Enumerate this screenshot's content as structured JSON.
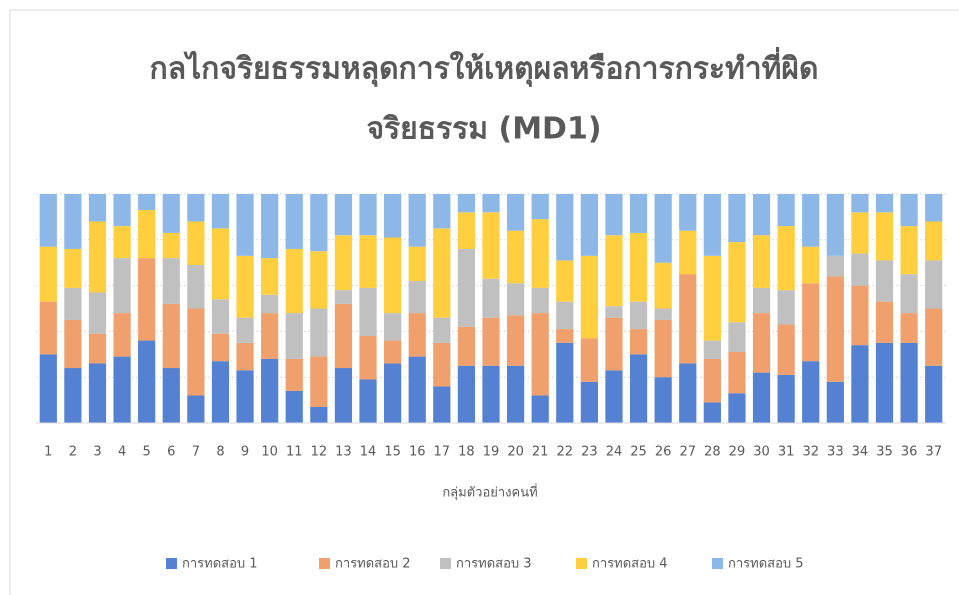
{
  "chart_data": {
    "type": "stacked_bar_100",
    "title_lines": [
      "กลไกจริยธรรมหลุดการให้เหตุผลหรือการกระทำที่ผิด",
      "จริยธรรม (MD1)"
    ],
    "x_label": "กลุ่มตัวอย่างคนที่",
    "categories": [
      "1",
      "2",
      "3",
      "4",
      "5",
      "6",
      "7",
      "8",
      "9",
      "10",
      "11",
      "12",
      "13",
      "14",
      "15",
      "16",
      "17",
      "18",
      "19",
      "20",
      "21",
      "22",
      "23",
      "24",
      "25",
      "26",
      "27",
      "28",
      "29",
      "30",
      "31",
      "32",
      "33",
      "34",
      "35",
      "36",
      "37"
    ],
    "ylim": [
      0,
      100
    ],
    "yticks": [
      0,
      20,
      40,
      60,
      80,
      100
    ],
    "grid": true,
    "legend": "bottom",
    "series": [
      {
        "name": "การทดสอบ 1",
        "color": "#5581d2",
        "values": [
          30,
          24,
          26,
          29,
          36,
          24,
          12,
          27,
          23,
          28,
          14,
          7,
          24,
          19,
          26,
          29,
          16,
          25,
          25,
          25,
          12,
          35,
          18,
          23,
          30,
          20,
          26,
          9,
          13,
          22,
          21,
          27,
          18,
          34,
          35,
          35,
          25
        ]
      },
      {
        "name": "การทดสอบ 2",
        "color": "#f0a06c",
        "values": [
          23,
          21,
          13,
          19,
          36,
          28,
          38,
          12,
          12,
          20,
          14,
          22,
          28,
          19,
          10,
          19,
          19,
          17,
          21,
          22,
          36,
          6,
          19,
          23,
          11,
          25,
          39,
          19,
          18,
          26,
          22,
          34,
          46,
          26,
          18,
          13,
          25
        ]
      },
      {
        "name": "การทดสอบ 3",
        "color": "#c0c0c0",
        "values": [
          0,
          14,
          18,
          24,
          0,
          20,
          19,
          15,
          11,
          8,
          20,
          21,
          6,
          21,
          12,
          14,
          11,
          34,
          17,
          14,
          11,
          12,
          0,
          5,
          12,
          5,
          0,
          8,
          13,
          11,
          15,
          0,
          9,
          14,
          18,
          17,
          21
        ]
      },
      {
        "name": "การทดสอบ 4",
        "color": "#ffcf40",
        "values": [
          24,
          17,
          31,
          14,
          21,
          11,
          19,
          31,
          27,
          16,
          28,
          25,
          24,
          23,
          33,
          15,
          39,
          16,
          29,
          23,
          30,
          18,
          36,
          31,
          30,
          20,
          19,
          37,
          35,
          23,
          28,
          16,
          0,
          18,
          21,
          21,
          17
        ]
      },
      {
        "name": "การทดสอบ 5",
        "color": "#8cb7e6",
        "values": [
          23,
          24,
          12,
          14,
          7,
          17,
          12,
          15,
          27,
          28,
          24,
          25,
          18,
          18,
          19,
          23,
          15,
          8,
          8,
          16,
          11,
          29,
          27,
          18,
          17,
          30,
          16,
          27,
          21,
          18,
          14,
          23,
          27,
          8,
          8,
          14,
          12
        ]
      }
    ]
  }
}
